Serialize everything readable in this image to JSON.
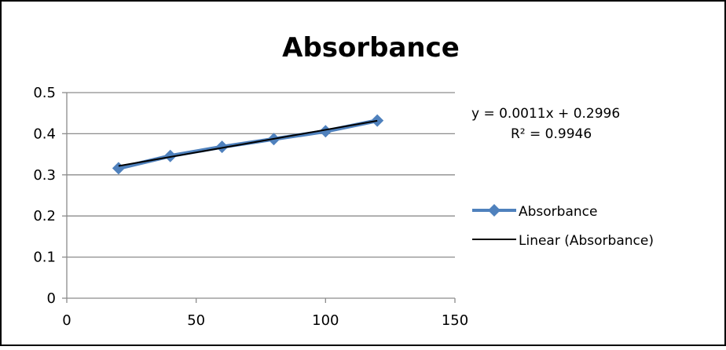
{
  "chart_data": {
    "type": "scatter",
    "title": "Absorbance",
    "xlabel": "",
    "ylabel": "",
    "xlim": [
      0,
      150
    ],
    "ylim": [
      0,
      0.5
    ],
    "x_ticks": [
      0,
      50,
      100,
      150
    ],
    "y_ticks": [
      0,
      0.1,
      0.2,
      0.3,
      0.4,
      0.5
    ],
    "y_tick_labels": [
      "0",
      "0.1",
      "0.2",
      "0.3",
      "0.4",
      "0.5"
    ],
    "grid": "horizontal",
    "legend_position": "right",
    "series": [
      {
        "name": "Absorbance",
        "marker": "diamond",
        "color": "#4F81BD",
        "x": [
          20,
          40,
          60,
          80,
          100,
          120
        ],
        "y": [
          0.316,
          0.346,
          0.368,
          0.387,
          0.406,
          0.432
        ]
      }
    ],
    "trendline": {
      "name": "Linear (Absorbance)",
      "color": "#000000",
      "slope": 0.0011,
      "intercept": 0.2996,
      "x_range": [
        20,
        120
      ],
      "equation": "y = 0.0011x + 0.2996",
      "r_squared": "R² = 0.9946"
    }
  }
}
